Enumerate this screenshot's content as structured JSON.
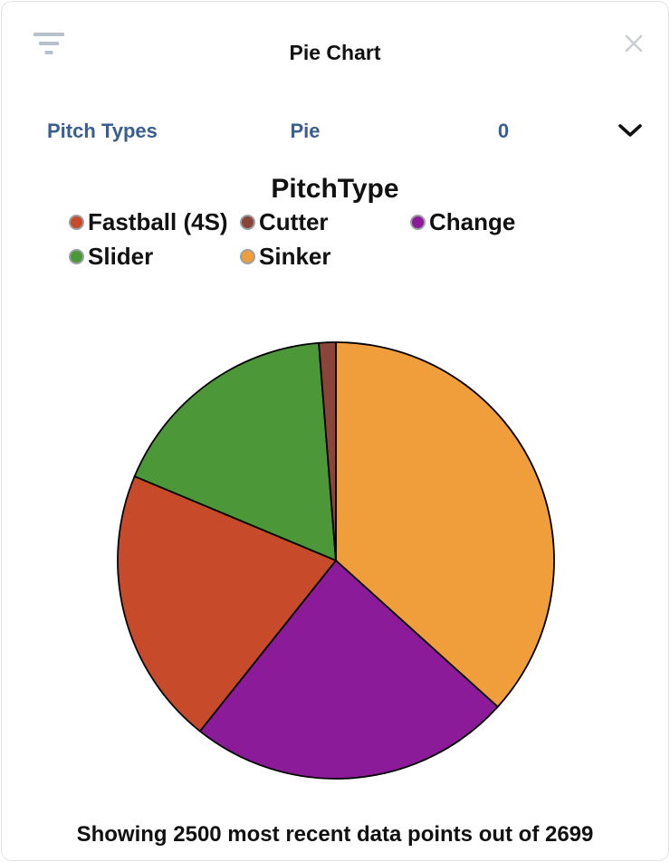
{
  "header": {
    "title": "Pie Chart"
  },
  "icons": {
    "filter_icon": "three-bar funnel (css bars)",
    "close_icon": "✕",
    "chevron_down_icon": "⌄"
  },
  "controls": {
    "dataset_label": "Pitch Types",
    "chart_type": "Pie",
    "value": "0"
  },
  "legend": {
    "title": "PitchType",
    "items": [
      {
        "label": "Fastball (4S)",
        "color": "#c74a2b"
      },
      {
        "label": "Cutter",
        "color": "#8a4438"
      },
      {
        "label": "Change",
        "color": "#8b1b98"
      },
      {
        "label": "Slider",
        "color": "#4c9838"
      },
      {
        "label": "Sinker",
        "color": "#ef9e3b"
      }
    ]
  },
  "chart_data": {
    "type": "pie",
    "title": "PitchType",
    "start": "top",
    "direction": "clockwise",
    "legend_position": "top",
    "outline_color": "#000000",
    "slices": [
      {
        "name": "Sinker",
        "color": "#ef9e3b",
        "percent": 36.7
      },
      {
        "name": "Change",
        "color": "#8b1b98",
        "percent": 24.0
      },
      {
        "name": "Fastball (4S)",
        "color": "#c74a2b",
        "percent": 20.6
      },
      {
        "name": "Slider",
        "color": "#4c9838",
        "percent": 17.45
      },
      {
        "name": "Cutter",
        "color": "#8a4438",
        "percent": 1.25
      }
    ]
  },
  "footer": {
    "note": "Showing 2500 most recent data points out of 2699"
  },
  "colors": {
    "accent_blue": "#395e8f",
    "filter_icon_grey": "#b7c1cb",
    "close_icon_grey": "#c9cdd4",
    "border_grey": "#e3e3e3",
    "text_black": "#111111"
  }
}
